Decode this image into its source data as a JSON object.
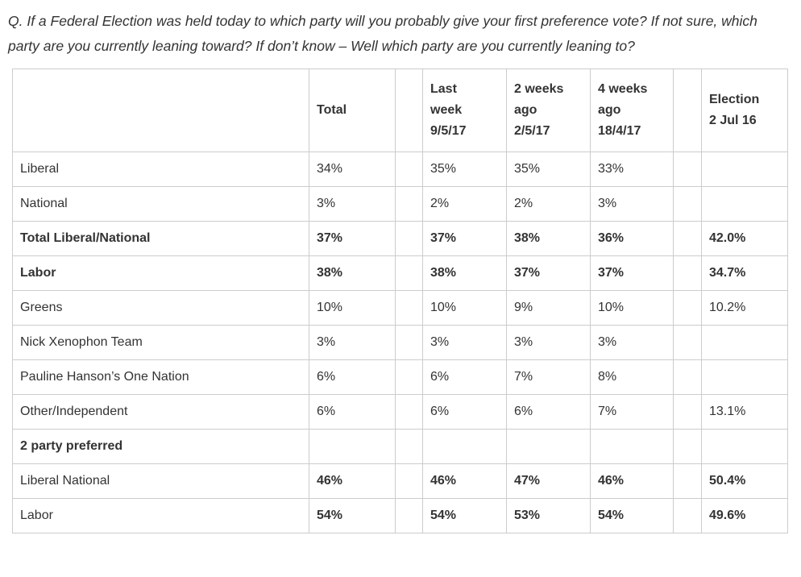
{
  "question": "Q. If a Federal Election was held today to which party will you probably give your first preference vote? If not sure, which party are you currently leaning toward? If don’t know – Well which party are you currently leaning to?",
  "table": {
    "headers": {
      "party": "",
      "total": "Total",
      "last_week": "Last\nweek\n9/5/17",
      "two_weeks_ago": "2 weeks\nago\n2/5/17",
      "four_weeks_ago": "4 weeks\nago\n18/4/17",
      "election": "Election\n2 Jul 16"
    },
    "rows": [
      {
        "label": "Liberal",
        "values": [
          "34%",
          "35%",
          "35%",
          "33%",
          ""
        ]
      },
      {
        "label": "National",
        "values": [
          "3%",
          "2%",
          "2%",
          "3%",
          ""
        ]
      },
      {
        "label": "Total Liberal/National",
        "values": [
          "37%",
          "37%",
          "38%",
          "36%",
          "42.0%"
        ]
      },
      {
        "label": "Labor",
        "values": [
          "38%",
          "38%",
          "37%",
          "37%",
          "34.7%"
        ]
      },
      {
        "label": "Greens",
        "values": [
          "10%",
          "10%",
          "9%",
          "10%",
          "10.2%"
        ]
      },
      {
        "label": "Nick Xenophon Team",
        "values": [
          "3%",
          "3%",
          "3%",
          "3%",
          ""
        ]
      },
      {
        "label": "Pauline Hanson’s One Nation",
        "values": [
          "6%",
          "6%",
          "7%",
          "8%",
          ""
        ]
      },
      {
        "label": "Other/Independent",
        "values": [
          "6%",
          "6%",
          "6%",
          "7%",
          "13.1%"
        ]
      },
      {
        "label": "2 party preferred",
        "values": [
          "",
          "",
          "",
          "",
          ""
        ]
      },
      {
        "label": "Liberal National",
        "values": [
          "46%",
          "46%",
          "47%",
          "46%",
          "50.4%"
        ]
      },
      {
        "label": "Labor",
        "values": [
          "54%",
          "54%",
          "53%",
          "54%",
          "49.6%"
        ]
      }
    ]
  }
}
